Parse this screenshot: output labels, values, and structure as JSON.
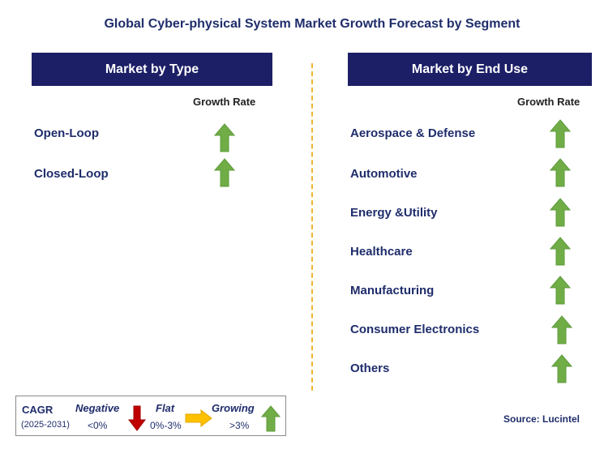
{
  "title": "Global Cyber-physical System Market Growth Forecast by Segment",
  "left_panel": {
    "heading": "Market by Type",
    "column_heading": "Growth Rate",
    "rows": [
      {
        "label": "Open-Loop",
        "trend": "growing"
      },
      {
        "label": "Closed-Loop",
        "trend": "growing"
      }
    ]
  },
  "right_panel": {
    "heading": "Market by End Use",
    "column_heading": "Growth Rate",
    "rows": [
      {
        "label": "Aerospace & Defense",
        "trend": "growing"
      },
      {
        "label": "Automotive",
        "trend": "growing"
      },
      {
        "label": "Energy &Utility",
        "trend": "growing"
      },
      {
        "label": "Healthcare",
        "trend": "growing"
      },
      {
        "label": "Manufacturing",
        "trend": "growing"
      },
      {
        "label": "Consumer Electronics",
        "trend": "growing"
      },
      {
        "label": "Others",
        "trend": "growing"
      }
    ]
  },
  "legend": {
    "cagr_label": "CAGR",
    "period": "(2025-2031)",
    "negative": {
      "label": "Negative",
      "range": "<0%",
      "color": "#c00000",
      "icon": "down-arrow-icon"
    },
    "flat": {
      "label": "Flat",
      "range": "0%-3%",
      "color": "#ffc000",
      "icon": "right-arrow-icon"
    },
    "growing": {
      "label": "Growing",
      "range": ">3%",
      "color": "#70ad47",
      "icon": "up-arrow-icon"
    }
  },
  "source": "Source: Lucintel",
  "colors": {
    "heading_bg": "#1c1f66",
    "text": "#1f2d6b",
    "divider": "#f2b233",
    "growing_arrow": "#70ad47"
  }
}
